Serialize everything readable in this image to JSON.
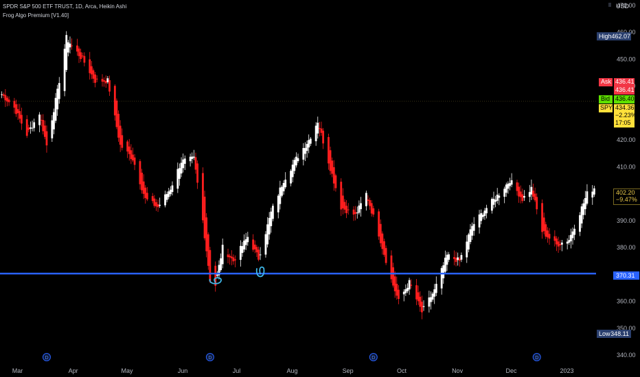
{
  "header": {
    "symbol_line": "SPDR S&P 500 ETF TRUST, 1D, Arca, Heikin Ashi",
    "indicator_line": "Frog Algo Premium [V1.40]"
  },
  "price_axis": {
    "currency": "USD",
    "ticks": [
      "470.00",
      "460.00",
      "450.00",
      "440.00",
      "420.00",
      "410.00",
      "400.00",
      "390.00",
      "380.00",
      "370.00",
      "360.00",
      "350.00",
      "340.00"
    ]
  },
  "time_axis": {
    "ticks": [
      "Mar",
      "Apr",
      "May",
      "Jun",
      "Jul",
      "Aug",
      "Sep",
      "Oct",
      "Nov",
      "Dec",
      "2023"
    ]
  },
  "labels": {
    "high": {
      "name": "High",
      "value": "462.07"
    },
    "ask": {
      "name": "Ask",
      "value": "436.41",
      "value2": "436.41"
    },
    "bid": {
      "name": "Bid",
      "value": "436.40"
    },
    "spy": {
      "name": "SPY",
      "value": "434.36",
      "change": "−2.23%",
      "time": "17:05"
    },
    "last": {
      "value": "402.20",
      "change": "−9.47%"
    },
    "support": {
      "value": "370.31"
    },
    "low": {
      "name": "Low",
      "value": "348.11"
    }
  },
  "dividend_marker": "D",
  "colors": {
    "bg": "#000000",
    "up": "#ffffff",
    "down": "#ff1e1e",
    "support": "#2962ff",
    "loop": "#3fb7e8",
    "ask": "#f23645",
    "bid": "#5ee000",
    "spy": "#ffe03a",
    "navy": "#2a3f6e"
  },
  "chart_data": {
    "type": "candlestick",
    "style": "Heikin Ashi",
    "timeframe": "1D",
    "y_range": [
      340,
      470
    ],
    "x_range": [
      "2022-02-20",
      "2023-01-18"
    ],
    "support_level": 370.31,
    "prior_close_level": 434.36,
    "dividend_dates": [
      "2022-03-18",
      "2022-06-17",
      "2022-09-16",
      "2022-12-16"
    ],
    "close_path": [
      [
        "2022-02-21",
        437
      ],
      [
        "2022-02-28",
        432
      ],
      [
        "2022-03-07",
        422
      ],
      [
        "2022-03-14",
        430
      ],
      [
        "2022-03-18",
        418
      ],
      [
        "2022-03-24",
        438
      ],
      [
        "2022-03-29",
        458
      ],
      [
        "2022-04-01",
        455
      ],
      [
        "2022-04-07",
        450
      ],
      [
        "2022-04-14",
        442
      ],
      [
        "2022-04-21",
        442
      ],
      [
        "2022-04-28",
        418
      ],
      [
        "2022-05-05",
        413
      ],
      [
        "2022-05-12",
        398
      ],
      [
        "2022-05-19",
        395
      ],
      [
        "2022-05-26",
        402
      ],
      [
        "2022-06-01",
        412
      ],
      [
        "2022-06-08",
        413
      ],
      [
        "2022-06-13",
        390
      ],
      [
        "2022-06-17",
        368
      ],
      [
        "2022-06-20",
        366
      ],
      [
        "2022-06-24",
        380
      ],
      [
        "2022-06-30",
        375
      ],
      [
        "2022-07-08",
        384
      ],
      [
        "2022-07-14",
        376
      ],
      [
        "2022-07-21",
        393
      ],
      [
        "2022-07-28",
        405
      ],
      [
        "2022-08-04",
        413
      ],
      [
        "2022-08-11",
        420
      ],
      [
        "2022-08-16",
        427
      ],
      [
        "2022-08-22",
        412
      ],
      [
        "2022-08-29",
        395
      ],
      [
        "2022-09-06",
        392
      ],
      [
        "2022-09-12",
        400
      ],
      [
        "2022-09-19",
        385
      ],
      [
        "2022-09-26",
        368
      ],
      [
        "2022-09-30",
        360
      ],
      [
        "2022-10-06",
        367
      ],
      [
        "2022-10-13",
        356
      ],
      [
        "2022-10-20",
        364
      ],
      [
        "2022-10-27",
        377
      ],
      [
        "2022-11-03",
        375
      ],
      [
        "2022-11-10",
        388
      ],
      [
        "2022-11-17",
        394
      ],
      [
        "2022-11-25",
        400
      ],
      [
        "2022-12-01",
        405
      ],
      [
        "2022-12-08",
        398
      ],
      [
        "2022-12-13",
        402
      ],
      [
        "2022-12-19",
        386
      ],
      [
        "2022-12-27",
        381
      ],
      [
        "2023-01-03",
        383
      ],
      [
        "2023-01-09",
        393
      ],
      [
        "2023-01-13",
        400
      ],
      [
        "2023-01-17",
        402.2
      ]
    ]
  }
}
